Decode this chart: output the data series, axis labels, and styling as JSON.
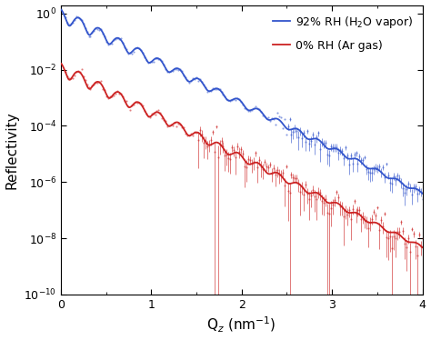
{
  "title": "",
  "xlabel": "Q$_z$ (nm$^{-1}$)",
  "ylabel": "Reflectivity",
  "xlim": [
    0.0,
    4.0
  ],
  "blue_label": "92% RH (H$_2$O vapor)",
  "red_label": "0% RH (Ar gas)",
  "blue_color": "#3355cc",
  "red_color": "#cc2222",
  "background_color": "#ffffff",
  "legend_fontsize": 9,
  "axis_fontsize": 11,
  "tick_fontsize": 9
}
